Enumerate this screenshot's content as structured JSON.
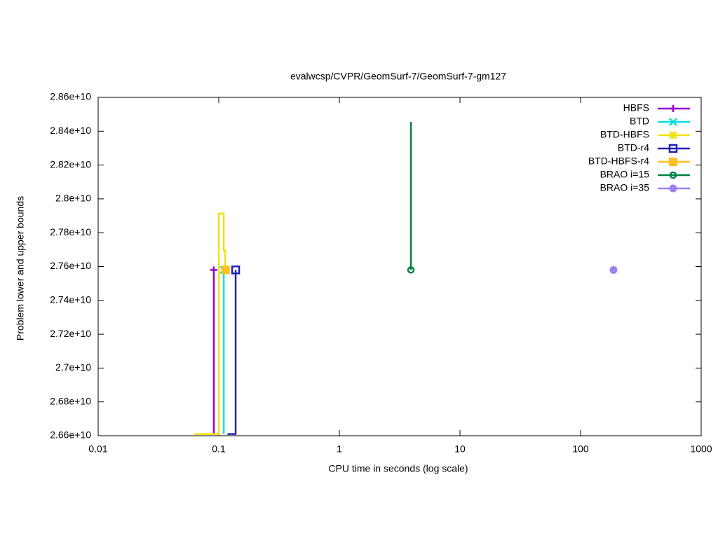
{
  "chart_data": {
    "type": "line",
    "title": "evalwcsp/CVPR/GeomSurf-7/GeomSurf-7-gm127",
    "x_label": "CPU time in seconds (log scale)",
    "y_label": "Problem lower and upper bounds",
    "x_log": true,
    "xlim": [
      0.01,
      1000
    ],
    "xticks": [
      0.01,
      0.1,
      1,
      10,
      100,
      1000
    ],
    "ylim": [
      26600000000,
      28600000000
    ],
    "yticks": [
      {
        "value": 26600000000,
        "label": "2.66e+10"
      },
      {
        "value": 26800000000,
        "label": "2.68e+10"
      },
      {
        "value": 27000000000,
        "label": "2.7e+10"
      },
      {
        "value": 27200000000,
        "label": "2.72e+10"
      },
      {
        "value": 27400000000,
        "label": "2.74e+10"
      },
      {
        "value": 27600000000,
        "label": "2.76e+10"
      },
      {
        "value": 27800000000,
        "label": "2.78e+10"
      },
      {
        "value": 28000000000,
        "label": "2.8e+10"
      },
      {
        "value": 28200000000,
        "label": "2.82e+10"
      },
      {
        "value": 28400000000,
        "label": "2.84e+10"
      },
      {
        "value": 28600000000,
        "label": "2.86e+10"
      }
    ],
    "legend": "top-right",
    "series": [
      {
        "name": "HBFS",
        "color": "#9400d3",
        "marker": "plus",
        "x": [
          0.091,
          0.091
        ],
        "values": [
          26610000000,
          27580000000
        ]
      },
      {
        "name": "BTD",
        "color": "#00e0e0",
        "marker": "cross",
        "x": [
          0.11,
          0.11
        ],
        "values": [
          26610000000,
          27580000000
        ]
      },
      {
        "name": "BTD-HBFS",
        "color": "#f0e010",
        "marker": "star",
        "x": [
          0.062,
          0.1,
          0.1,
          0.11,
          0.11,
          0.113,
          0.113
        ],
        "values": [
          26610000000,
          26610000000,
          27913000000,
          27913000000,
          27697000000,
          27697000000,
          27580000000
        ]
      },
      {
        "name": "BTD-r4",
        "color": "#2020b0",
        "marker": "square-open",
        "x": [
          0.118,
          0.138,
          0.138
        ],
        "values": [
          26610000000,
          26610000000,
          27580000000
        ]
      },
      {
        "name": "BTD-HBFS-r4",
        "color": "#ffc020",
        "marker": "square",
        "x": [
          0.114
        ],
        "values": [
          27580000000
        ]
      },
      {
        "name": "BRAO i=15",
        "color": "#008040",
        "marker": "circle-open",
        "x": [
          3.92,
          3.92
        ],
        "values": [
          28455000000,
          27580000000
        ]
      },
      {
        "name": "BRAO i=35",
        "color": "#a080f0",
        "marker": "circle",
        "x": [
          187.5
        ],
        "values": [
          27580000000
        ]
      }
    ]
  }
}
